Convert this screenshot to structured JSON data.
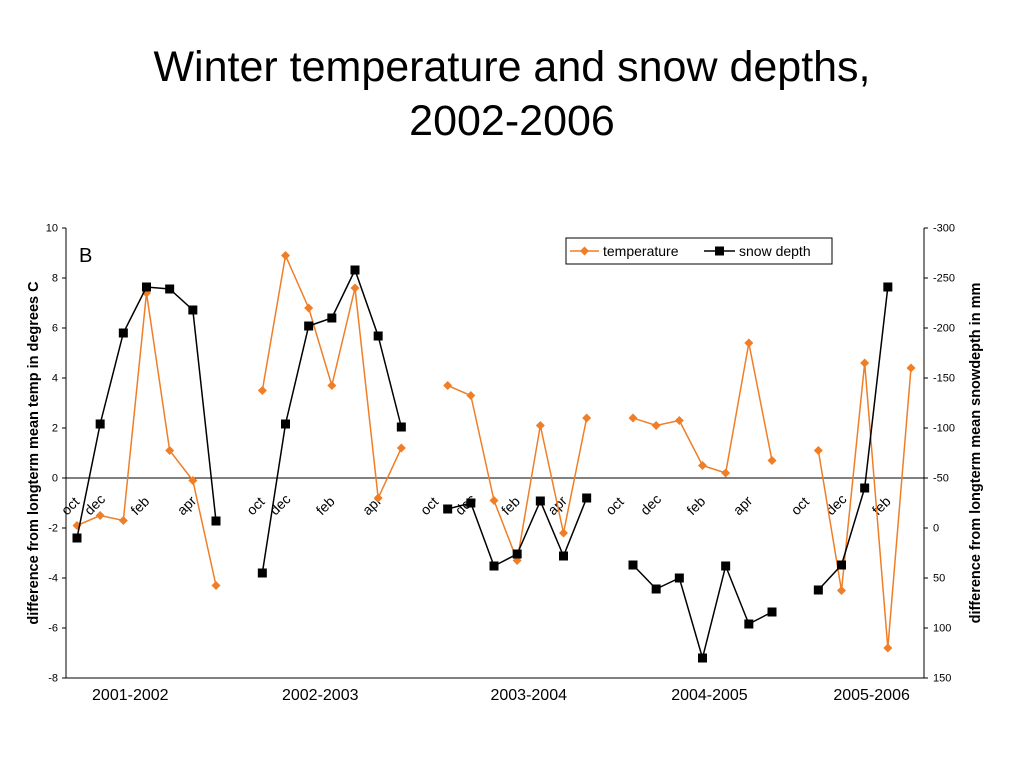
{
  "title": {
    "line1": "Winter temperature and snow depths,",
    "line2": "2002-2006"
  },
  "chart_data": {
    "type": "line",
    "panel_label": "B",
    "ylabel_left": "difference from longterm mean temp in degrees C",
    "ylabel_right": "difference from longterm mean snowdepth in mm",
    "ylim_left": [
      -8,
      10
    ],
    "yticks_left": [
      10,
      8,
      6,
      4,
      2,
      0,
      -2,
      -4,
      -6,
      -8
    ],
    "ylim_right": [
      -300,
      150
    ],
    "yticks_right": [
      -300,
      -250,
      -200,
      -150,
      -100,
      -50,
      0,
      50,
      100,
      150
    ],
    "right_axis_reversed": true,
    "x_index_range": [
      0,
      36
    ],
    "x_tick_labels": [
      {
        "x": 0,
        "label": "oct"
      },
      {
        "x": 1,
        "label": "dec"
      },
      {
        "x": 3,
        "label": "feb"
      },
      {
        "x": 5,
        "label": "apr"
      },
      {
        "x": 8,
        "label": "oct"
      },
      {
        "x": 9,
        "label": "dec"
      },
      {
        "x": 11,
        "label": "feb"
      },
      {
        "x": 13,
        "label": "apr"
      },
      {
        "x": 15.5,
        "label": "oct"
      },
      {
        "x": 17,
        "label": "dec"
      },
      {
        "x": 19,
        "label": "feb"
      },
      {
        "x": 21,
        "label": "apr"
      },
      {
        "x": 23.5,
        "label": "oct"
      },
      {
        "x": 25,
        "label": "dec"
      },
      {
        "x": 27,
        "label": "feb"
      },
      {
        "x": 29,
        "label": "apr"
      },
      {
        "x": 31.5,
        "label": "oct"
      },
      {
        "x": 33,
        "label": "dec"
      },
      {
        "x": 35,
        "label": "feb"
      }
    ],
    "season_labels": [
      {
        "x": 2.3,
        "label": "2001-2002"
      },
      {
        "x": 10.5,
        "label": "2002-2003"
      },
      {
        "x": 19.5,
        "label": "2003-2004"
      },
      {
        "x": 27.3,
        "label": "2004-2005"
      },
      {
        "x": 34.3,
        "label": "2005-2006"
      }
    ],
    "legend_position": "top-right",
    "series": [
      {
        "name": "temperature",
        "axis": "left",
        "color": "#F07E26",
        "marker": "diamond",
        "segments": [
          [
            [
              0,
              -1.9
            ],
            [
              1,
              -1.5
            ],
            [
              2,
              -1.7
            ],
            [
              3,
              7.4
            ],
            [
              4,
              1.1
            ],
            [
              5,
              -0.1
            ],
            [
              6,
              -4.3
            ]
          ],
          [
            [
              8,
              3.5
            ],
            [
              9,
              8.9
            ],
            [
              10,
              6.8
            ],
            [
              11,
              3.7
            ],
            [
              12,
              7.6
            ],
            [
              13,
              -0.8
            ],
            [
              14,
              1.2
            ]
          ],
          [
            [
              16,
              3.7
            ],
            [
              17,
              3.3
            ],
            [
              18,
              -0.9
            ],
            [
              19,
              -3.3
            ],
            [
              20,
              2.1
            ],
            [
              21,
              -2.2
            ],
            [
              22,
              2.4
            ]
          ],
          [
            [
              24,
              2.4
            ],
            [
              25,
              2.1
            ],
            [
              26,
              2.3
            ],
            [
              27,
              0.5
            ],
            [
              28,
              0.2
            ],
            [
              29,
              5.4
            ],
            [
              30,
              0.7
            ]
          ],
          [
            [
              32,
              1.1
            ],
            [
              33,
              -4.5
            ],
            [
              34,
              4.6
            ],
            [
              35,
              -6.8
            ],
            [
              36,
              4.4
            ]
          ]
        ]
      },
      {
        "name": "snow depth",
        "axis": "right",
        "color": "#000000",
        "marker": "square",
        "segments": [
          [
            [
              0,
              10
            ],
            [
              1,
              -104
            ],
            [
              2,
              -195
            ],
            [
              3,
              -241
            ],
            [
              4,
              -239
            ],
            [
              5,
              -218
            ],
            [
              6,
              -7
            ]
          ],
          [
            [
              8,
              45
            ],
            [
              9,
              -104
            ],
            [
              10,
              -202
            ],
            [
              11,
              -210
            ],
            [
              12,
              -258
            ],
            [
              13,
              -192
            ],
            [
              14,
              -101
            ]
          ],
          [
            [
              16,
              -19
            ],
            [
              17,
              -25
            ],
            [
              18,
              38
            ],
            [
              19,
              26
            ],
            [
              20,
              -27
            ],
            [
              21,
              28
            ],
            [
              22,
              -30
            ]
          ],
          [
            [
              24,
              37
            ],
            [
              25,
              61
            ],
            [
              26,
              50
            ],
            [
              27,
              130
            ],
            [
              28,
              38
            ],
            [
              29,
              96
            ],
            [
              30,
              84
            ]
          ],
          [
            [
              32,
              62
            ],
            [
              33,
              37
            ],
            [
              34,
              -40
            ],
            [
              35,
              -241
            ]
          ]
        ]
      }
    ]
  }
}
